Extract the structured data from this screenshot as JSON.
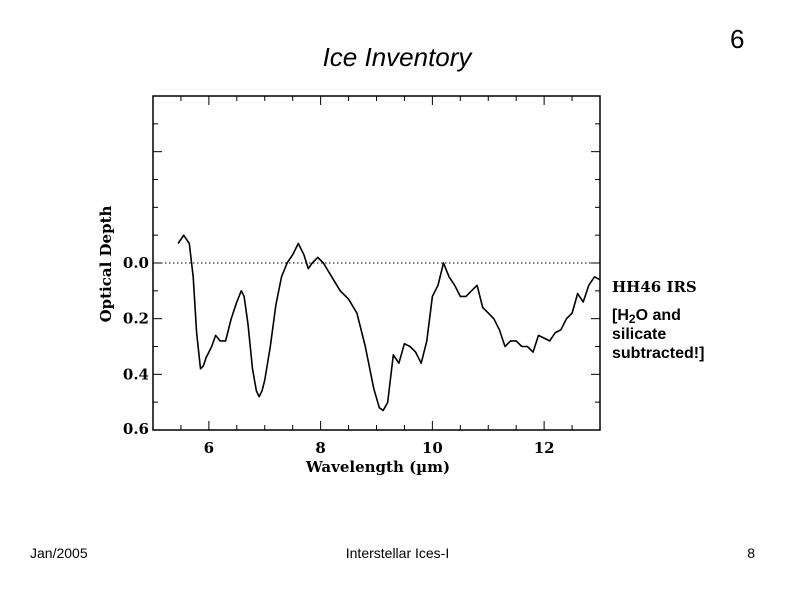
{
  "slide": {
    "title": "Ice Inventory",
    "number": "6",
    "footer_left": "Jan/2005",
    "footer_center": "Interstellar Ices-I",
    "footer_right": "8"
  },
  "annotation": {
    "prefix": "[H",
    "subscript": "2",
    "line1_suffix": "O and",
    "line2": "silicate",
    "line3": "subtracted!]"
  },
  "chart_data": {
    "type": "line",
    "title": "",
    "object_label": "HH46 IRS",
    "xlabel": "Wavelength (µm)",
    "ylabel": "Optical Depth",
    "xlim": [
      5.0,
      13.0
    ],
    "ylim": [
      0.6,
      -0.6
    ],
    "y_inverted": true,
    "x_ticks": [
      6,
      8,
      10,
      12
    ],
    "x_tick_labels": [
      "6",
      "8",
      "10",
      "12"
    ],
    "y_ticks": [
      0.0,
      0.2,
      0.4,
      0.6
    ],
    "y_tick_labels": [
      "0.0",
      "0.2",
      "0.4",
      "0.6"
    ],
    "reference_line": {
      "y": 0.0,
      "style": "dotted"
    },
    "series": [
      {
        "x": [
          5.45,
          5.55,
          5.65,
          5.72,
          5.78,
          5.85,
          5.9,
          5.95,
          6.05,
          6.12,
          6.2,
          6.3,
          6.4,
          6.5,
          6.58,
          6.63,
          6.7,
          6.78,
          6.85,
          6.9,
          6.95,
          7.0,
          7.1,
          7.2,
          7.3,
          7.4,
          7.5,
          7.55,
          7.6,
          7.7,
          7.78,
          7.85,
          7.95,
          8.05,
          8.2,
          8.35,
          8.5,
          8.65,
          8.8,
          8.95,
          9.05,
          9.12,
          9.2,
          9.3,
          9.4,
          9.5,
          9.6,
          9.7,
          9.8,
          9.9,
          10.0,
          10.1,
          10.2,
          10.3,
          10.4,
          10.5,
          10.6,
          10.7,
          10.8,
          10.9,
          11.0,
          11.1,
          11.2,
          11.3,
          11.4,
          11.5,
          11.6,
          11.7,
          11.8,
          11.9,
          12.0,
          12.1,
          12.2,
          12.3,
          12.4,
          12.5,
          12.6,
          12.7,
          12.8,
          12.9,
          13.0
        ],
        "values": [
          -0.07,
          -0.1,
          -0.07,
          0.05,
          0.25,
          0.38,
          0.37,
          0.34,
          0.3,
          0.26,
          0.28,
          0.28,
          0.2,
          0.14,
          0.1,
          0.12,
          0.22,
          0.38,
          0.46,
          0.48,
          0.46,
          0.42,
          0.3,
          0.15,
          0.05,
          0.0,
          -0.03,
          -0.05,
          -0.07,
          -0.03,
          0.02,
          0.0,
          -0.02,
          0.0,
          0.05,
          0.1,
          0.13,
          0.18,
          0.3,
          0.45,
          0.52,
          0.53,
          0.5,
          0.33,
          0.36,
          0.29,
          0.3,
          0.32,
          0.36,
          0.28,
          0.12,
          0.08,
          0.0,
          0.05,
          0.08,
          0.12,
          0.12,
          0.1,
          0.08,
          0.16,
          0.18,
          0.2,
          0.24,
          0.3,
          0.28,
          0.28,
          0.3,
          0.3,
          0.32,
          0.26,
          0.27,
          0.28,
          0.25,
          0.24,
          0.2,
          0.18,
          0.11,
          0.14,
          0.08,
          0.05,
          0.06
        ]
      }
    ]
  }
}
